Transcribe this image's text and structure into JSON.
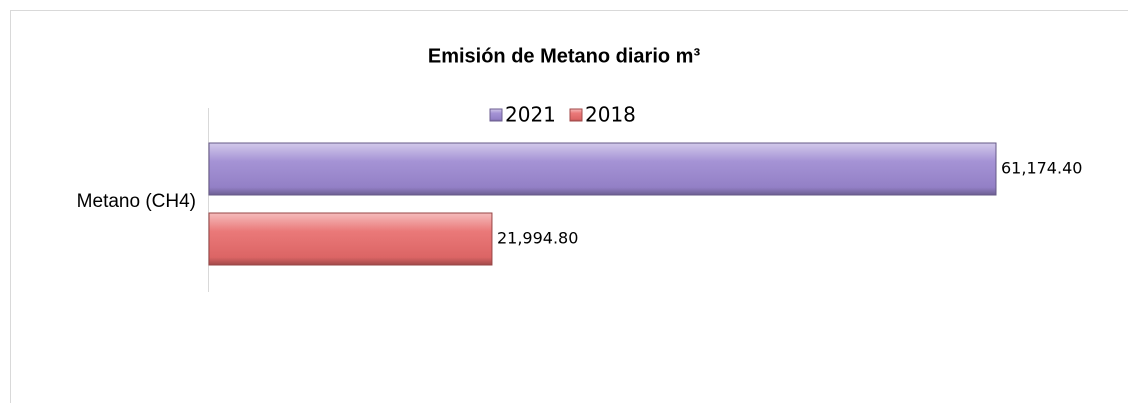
{
  "chart_data": {
    "type": "bar",
    "orientation": "horizontal",
    "title": "Emisión de Metano diario m³",
    "categories": [
      "Metano (CH4)"
    ],
    "series": [
      {
        "name": "2021",
        "color": "#9b87d0",
        "values": [
          61174.4
        ],
        "value_labels": [
          "61,174.40"
        ]
      },
      {
        "name": "2018",
        "color": "#e86a6a",
        "values": [
          21994.8
        ],
        "value_labels": [
          "21,994.80"
        ]
      }
    ],
    "legend": "top"
  }
}
